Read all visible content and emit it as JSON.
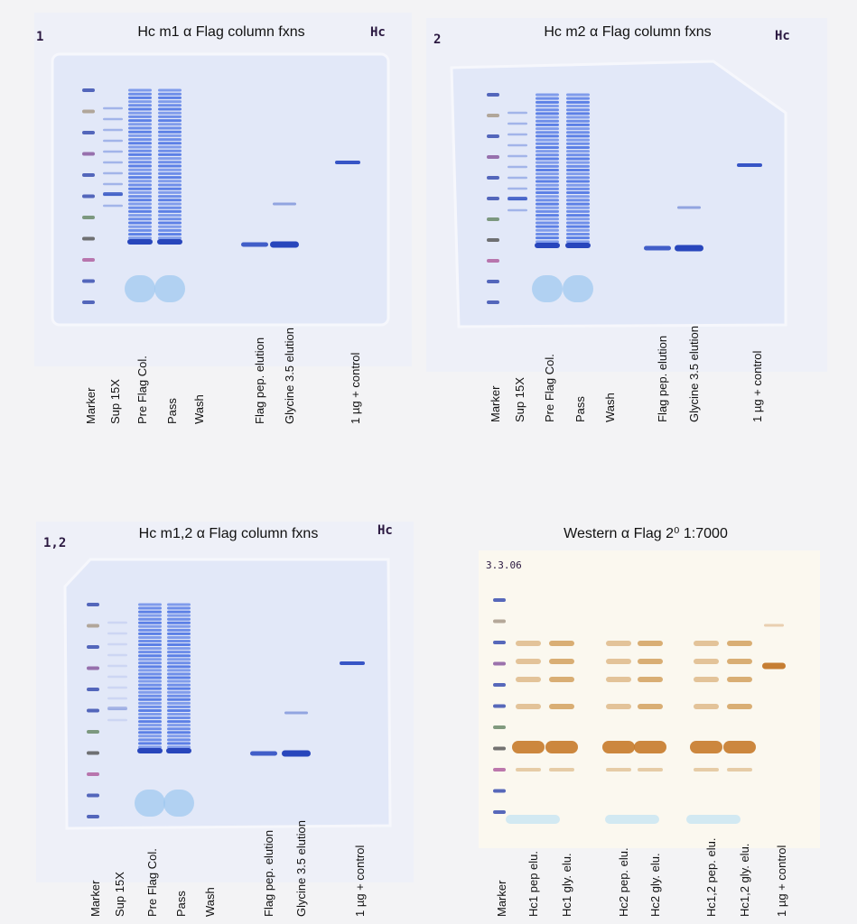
{
  "panels": [
    {
      "number": "1",
      "tag": "Hc",
      "title": "Hc m1  α Flag column fxns",
      "lanes": [
        "Marker",
        "Sup  15X",
        "Pre Flag Col.",
        "Pass",
        "Wash",
        "Flag pep. elution",
        "Glycine 3.5 elution",
        "1 µg  + control"
      ]
    },
    {
      "number": "2",
      "tag": "Hc",
      "title": "Hc m2  α Flag column fxns",
      "lanes": [
        "Marker",
        "Sup  15X",
        "Pre Flag Col.",
        "Pass",
        "Wash",
        "Flag pep. elution",
        "Glycine 3.5 elution",
        "1 µg  + control"
      ]
    },
    {
      "number": "1,2",
      "tag": "Hc",
      "title": "Hc m1,2  α Flag column fxns",
      "lanes": [
        "Marker",
        "Sup  15X",
        "Pre Flag Col.",
        "Pass",
        "Wash",
        "Flag pep. elution",
        "Glycine 3.5 elution",
        "1 µg  + control"
      ]
    },
    {
      "date": "3.3.06",
      "title": "Western  α Flag 2⁰ 1:7000",
      "lanes": [
        "Marker",
        "Hc1 pep elu.",
        "Hc1 gly. elu.",
        "Hc2 pep. elu.",
        "Hc2 gly. elu.",
        "Hc1,2 pep. elu.",
        "Hc1,2 gly. elu.",
        "1 µg  + control"
      ]
    }
  ]
}
